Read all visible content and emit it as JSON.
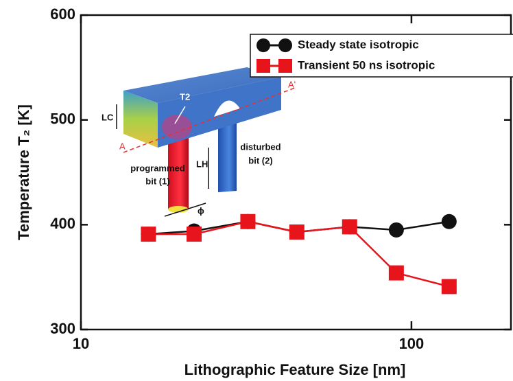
{
  "chart_data": {
    "type": "line",
    "x_label": "Lithographic Feature Size [nm]",
    "y_label": "Temperature T₂ [K]",
    "x": [
      16,
      22,
      32,
      45,
      65,
      90,
      130
    ],
    "series": [
      {
        "name": "Steady state isotropic",
        "color": "#111111",
        "marker": "circle",
        "values": [
          391,
          394,
          403,
          393,
          398,
          395,
          403
        ]
      },
      {
        "name": "Transient 50 ns isotropic",
        "color": "#e8141c",
        "marker": "square",
        "values": [
          391,
          391,
          403,
          393,
          398,
          354,
          341
        ]
      }
    ],
    "xlim": [
      10,
      200
    ],
    "xticks": [
      10,
      100
    ],
    "xlog": true,
    "ylim": [
      300,
      600
    ],
    "yticks": [
      300,
      400,
      500,
      600
    ],
    "legend": "top-right",
    "inset_labels": {
      "lc": "LC",
      "t2": "T2",
      "a": "A",
      "a_prime": "A'",
      "programmed": [
        "programmed",
        "bit (1)"
      ],
      "disturbed": [
        "disturbed",
        "bit (2)"
      ],
      "lh": "LH",
      "phi": "ϕ"
    }
  }
}
